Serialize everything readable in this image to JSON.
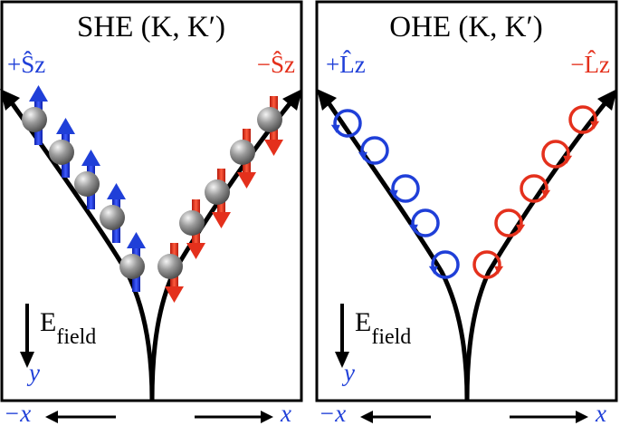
{
  "colors": {
    "blue": "#1f3fd8",
    "red": "#e4301c",
    "black": "#000000",
    "sphere": "#8c8c8c"
  },
  "panels": [
    {
      "title": "SHE (K, K′)",
      "label_left": "+Ŝz",
      "label_right": "−Ŝz",
      "field_label": "Efield",
      "axis_y": "y"
    },
    {
      "title": "OHE (K, K′)",
      "label_left": "+L̂z",
      "label_right": "−L̂z",
      "field_label": "Efield",
      "axis_y": "y"
    }
  ],
  "bottom_axis": {
    "neg_label": "−x",
    "pos_label": "x"
  },
  "icons": [
    "spin-up-arrow-icon",
    "spin-down-arrow-icon",
    "sphere-icon",
    "orbit-ccw-icon",
    "orbit-cw-icon",
    "field-arrow-icon"
  ]
}
